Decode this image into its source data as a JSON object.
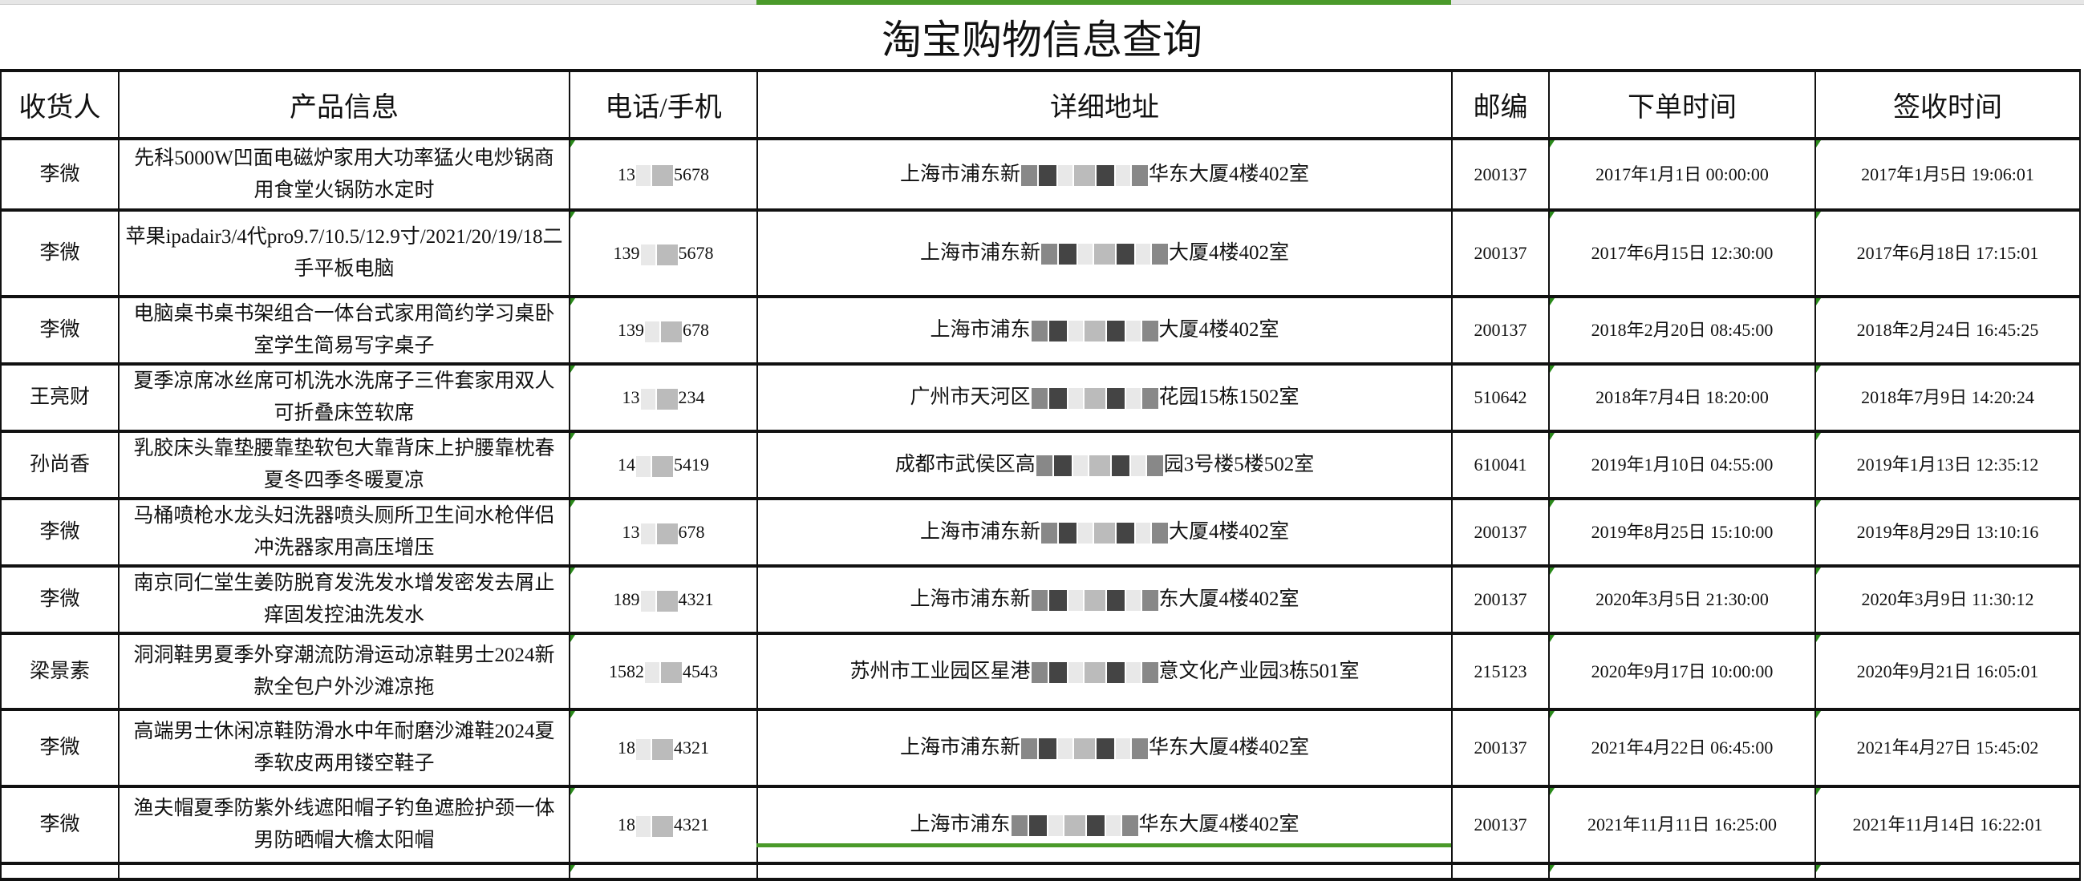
{
  "title": "淘宝购物信息查询",
  "headers": [
    "收货人",
    "产品信息",
    "电话/手机",
    "详细地址",
    "邮编",
    "下单时间",
    "签收时间"
  ],
  "accent": "#4a9a2a",
  "rows": [
    {
      "name": "李微",
      "product": "先科5000W凹面电磁炉家用大功率猛火电炒锅商用食堂火锅防水定时",
      "phone_prefix": "13",
      "phone_suffix": "5678",
      "addr_prefix": "上海市浦东新",
      "addr_suffix": "华东大厦4楼402室",
      "zip": "200137",
      "order": "2017年1月1日 00:00:00",
      "sign": "2017年1月5日 19:06:01"
    },
    {
      "name": "李微",
      "product": "苹果ipadair3/4代pro9.7/10.5/12.9寸/2021/20/19/18二手平板电脑",
      "phone_prefix": "139",
      "phone_suffix": "5678",
      "addr_prefix": "上海市浦东新",
      "addr_suffix": "大厦4楼402室",
      "zip": "200137",
      "order": "2017年6月15日 12:30:00",
      "sign": "2017年6月18日 17:15:01"
    },
    {
      "name": "李微",
      "product": "电脑桌书桌书架组合一体台式家用简约学习桌卧室学生简易写字桌子",
      "phone_prefix": "139",
      "phone_suffix": "678",
      "addr_prefix": "上海市浦东",
      "addr_suffix": "大厦4楼402室",
      "zip": "200137",
      "order": "2018年2月20日 08:45:00",
      "sign": "2018年2月24日 16:45:25"
    },
    {
      "name": "王亮财",
      "product": "夏季凉席冰丝席可机洗水洗席子三件套家用双人可折叠床笠软席",
      "phone_prefix": "13",
      "phone_suffix": "234",
      "addr_prefix": "广州市天河区",
      "addr_suffix": "花园15栋1502室",
      "zip": "510642",
      "order": "2018年7月4日 18:20:00",
      "sign": "2018年7月9日 14:20:24"
    },
    {
      "name": "孙尚香",
      "product": "乳胶床头靠垫腰靠垫软包大靠背床上护腰靠枕春夏冬四季冬暖夏凉",
      "phone_prefix": "14",
      "phone_suffix": "5419",
      "addr_prefix": "成都市武侯区高",
      "addr_suffix": "园3号楼5楼502室",
      "zip": "610041",
      "order": "2019年1月10日 04:55:00",
      "sign": "2019年1月13日 12:35:12"
    },
    {
      "name": "李微",
      "product": "马桶喷枪水龙头妇洗器喷头厕所卫生间水枪伴侣冲洗器家用高压增压",
      "phone_prefix": "13",
      "phone_suffix": "678",
      "addr_prefix": "上海市浦东新",
      "addr_suffix": "大厦4楼402室",
      "zip": "200137",
      "order": "2019年8月25日 15:10:00",
      "sign": "2019年8月29日 13:10:16"
    },
    {
      "name": "李微",
      "product": "南京同仁堂生姜防脱育发洗发水增发密发去屑止痒固发控油洗发水",
      "phone_prefix": "189",
      "phone_suffix": "4321",
      "addr_prefix": "上海市浦东新",
      "addr_suffix": "东大厦4楼402室",
      "zip": "200137",
      "order": "2020年3月5日 21:30:00",
      "sign": "2020年3月9日 11:30:12"
    },
    {
      "name": "梁景素",
      "product": "洞洞鞋男夏季外穿潮流防滑运动凉鞋男士2024新款全包户外沙滩凉拖",
      "phone_prefix": "1582",
      "phone_suffix": "4543",
      "addr_prefix": "苏州市工业园区星港",
      "addr_suffix": "意文化产业园3栋501室",
      "zip": "215123",
      "order": "2020年9月17日 10:00:00",
      "sign": "2020年9月21日 16:05:01"
    },
    {
      "name": "李微",
      "product": "高端男士休闲凉鞋防滑水中年耐磨沙滩鞋2024夏季软皮两用镂空鞋子",
      "phone_prefix": "18",
      "phone_suffix": "4321",
      "addr_prefix": "上海市浦东新",
      "addr_suffix": "华东大厦4楼402室",
      "zip": "200137",
      "order": "2021年4月22日 06:45:00",
      "sign": "2021年4月27日 15:45:02"
    },
    {
      "name": "李微",
      "product": "渔夫帽夏季防紫外线遮阳帽子钓鱼遮脸护颈一体男防晒帽大檐太阳帽",
      "phone_prefix": "18",
      "phone_suffix": "4321",
      "addr_prefix": "上海市浦东",
      "addr_suffix": "华东大厦4楼402室",
      "zip": "200137",
      "order": "2021年11月11日 16:25:00",
      "sign": "2021年11月14日 16:22:01"
    }
  ]
}
